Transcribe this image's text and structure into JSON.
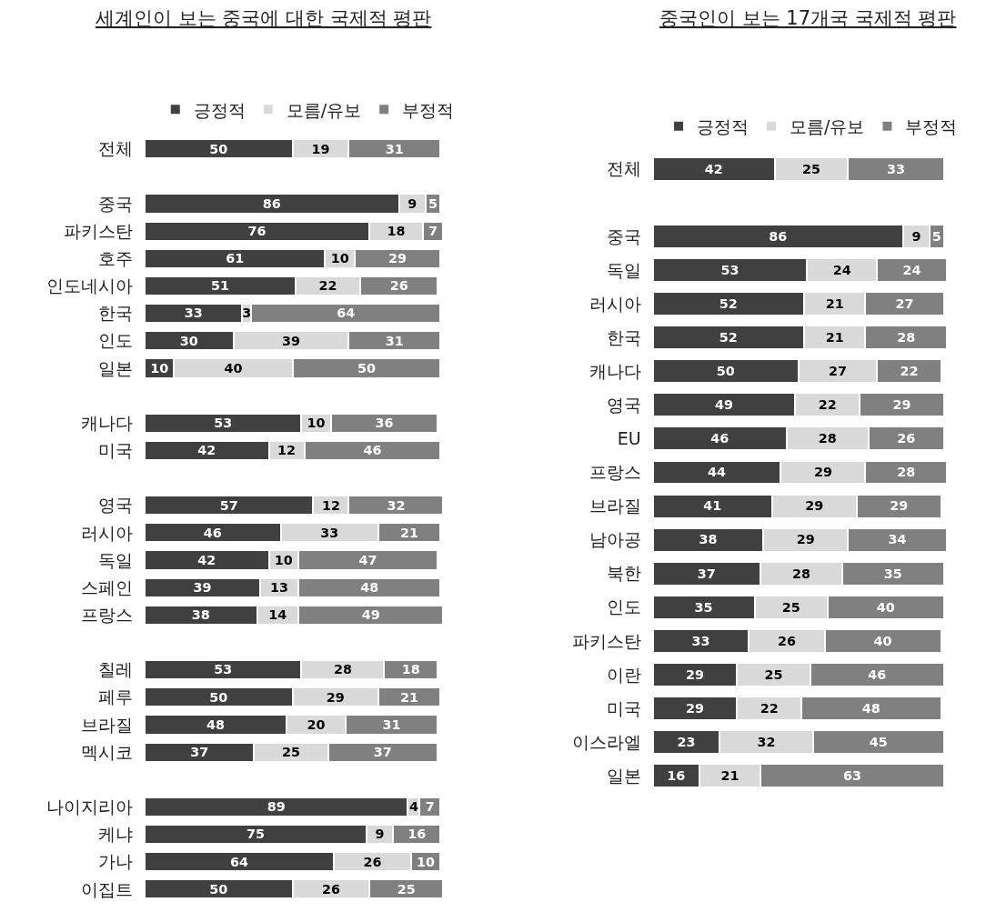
{
  "chart_data": [
    {
      "type": "bar",
      "title": "세계인이 보는 중국에 대한 국제적 평판",
      "orientation": "horizontal",
      "stacked": true,
      "data_labels": true,
      "legend": "top",
      "tick_labels": "y",
      "categories": [
        "전체",
        null,
        "중국",
        "파키스탄",
        "호주",
        "인도네시아",
        "한국",
        "인도",
        "일본",
        null,
        "캐나다",
        "미국",
        null,
        "영국",
        "러시아",
        "독일",
        "스페인",
        "프랑스",
        null,
        "칠레",
        "페루",
        "브라질",
        "멕시코",
        null,
        "나이지리아",
        "케냐",
        "가나",
        "이집트"
      ],
      "series": [
        {
          "name": "긍정적",
          "color": "#404040",
          "values": [
            50,
            null,
            86,
            76,
            61,
            51,
            33,
            30,
            10,
            null,
            53,
            42,
            null,
            57,
            46,
            42,
            39,
            38,
            null,
            53,
            50,
            48,
            37,
            null,
            89,
            75,
            64,
            50
          ]
        },
        {
          "name": "모름/유보",
          "color": "#d9d9d9",
          "values": [
            19,
            null,
            9,
            18,
            10,
            22,
            3,
            39,
            40,
            null,
            10,
            12,
            null,
            12,
            33,
            10,
            13,
            14,
            null,
            28,
            29,
            20,
            25,
            null,
            4,
            9,
            26,
            26
          ]
        },
        {
          "name": "부정적",
          "color": "#808080",
          "values": [
            31,
            null,
            5,
            7,
            29,
            26,
            64,
            31,
            50,
            null,
            36,
            46,
            null,
            32,
            21,
            47,
            48,
            49,
            null,
            18,
            21,
            31,
            37,
            null,
            7,
            16,
            10,
            25
          ]
        }
      ]
    },
    {
      "type": "bar",
      "title": "중국인이 보는 17개국 국제적 평판",
      "orientation": "horizontal",
      "stacked": true,
      "data_labels": true,
      "legend": "top",
      "tick_labels": "y",
      "categories": [
        "전체",
        null,
        "중국",
        "독일",
        "러시아",
        "한국",
        "캐나다",
        "영국",
        "EU",
        "프랑스",
        "브라질",
        "남아공",
        "북한",
        "인도",
        "파키스탄",
        "이란",
        "미국",
        "이스라엘",
        "일본"
      ],
      "series": [
        {
          "name": "긍정적",
          "color": "#404040",
          "values": [
            42,
            null,
            86,
            53,
            52,
            52,
            50,
            49,
            46,
            44,
            41,
            38,
            37,
            35,
            33,
            29,
            29,
            23,
            16
          ]
        },
        {
          "name": "모름/유보",
          "color": "#d9d9d9",
          "values": [
            25,
            null,
            9,
            24,
            21,
            21,
            27,
            22,
            28,
            29,
            29,
            29,
            28,
            25,
            26,
            25,
            22,
            32,
            21
          ]
        },
        {
          "name": "부정적",
          "color": "#808080",
          "values": [
            33,
            null,
            5,
            24,
            27,
            28,
            22,
            29,
            26,
            28,
            29,
            34,
            35,
            40,
            40,
            46,
            48,
            45,
            63
          ]
        }
      ]
    }
  ]
}
